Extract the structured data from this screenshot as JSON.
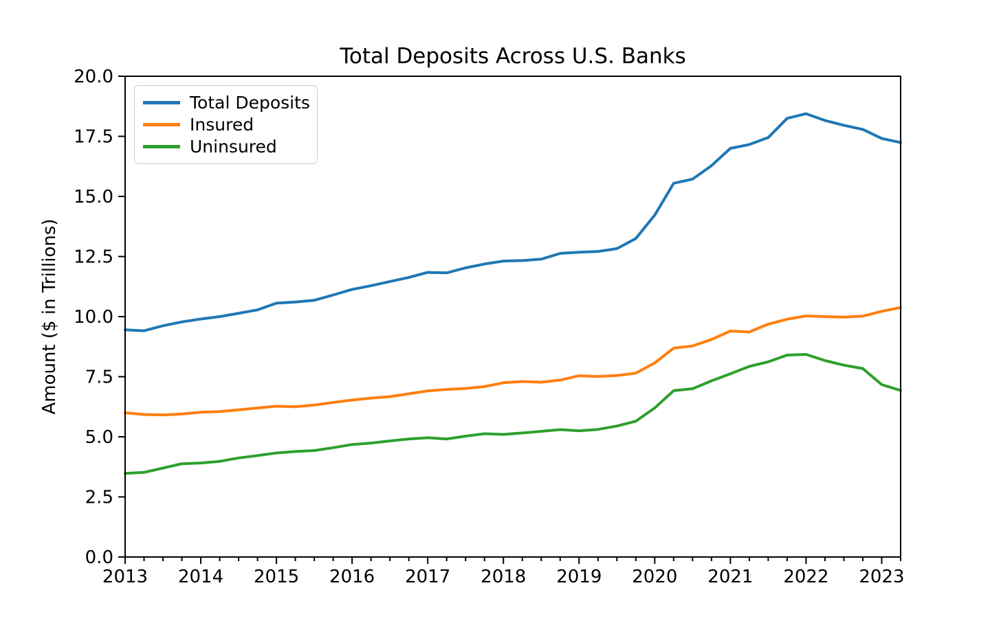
{
  "figure": {
    "background_color": "#ffffff",
    "axis_color": "#000000",
    "legend_border_color": "#cccccc"
  },
  "chart_data": {
    "type": "line",
    "title": "Total Deposits Across U.S. Banks",
    "xlabel": "",
    "ylabel": "Amount ($ in Trillions)",
    "xlim": [
      2013.0,
      2023.25
    ],
    "ylim": [
      0.0,
      20.0
    ],
    "grid": false,
    "legend_position": "upper-left",
    "x_minor_tick_interval": 0.25,
    "x_ticks": [
      {
        "value": 2013,
        "label": "2013"
      },
      {
        "value": 2014,
        "label": "2014"
      },
      {
        "value": 2015,
        "label": "2015"
      },
      {
        "value": 2016,
        "label": "2016"
      },
      {
        "value": 2017,
        "label": "2017"
      },
      {
        "value": 2018,
        "label": "2018"
      },
      {
        "value": 2019,
        "label": "2019"
      },
      {
        "value": 2020,
        "label": "2020"
      },
      {
        "value": 2021,
        "label": "2021"
      },
      {
        "value": 2022,
        "label": "2022"
      },
      {
        "value": 2023,
        "label": "2023"
      }
    ],
    "y_ticks": [
      {
        "value": 0.0,
        "label": "0.0"
      },
      {
        "value": 2.5,
        "label": "2.5"
      },
      {
        "value": 5.0,
        "label": "5.0"
      },
      {
        "value": 7.5,
        "label": "7.5"
      },
      {
        "value": 10.0,
        "label": "10.0"
      },
      {
        "value": 12.5,
        "label": "12.5"
      },
      {
        "value": 15.0,
        "label": "15.0"
      },
      {
        "value": 17.5,
        "label": "17.5"
      },
      {
        "value": 20.0,
        "label": "20.0"
      }
    ],
    "x": [
      2013.0,
      2013.25,
      2013.5,
      2013.75,
      2014.0,
      2014.25,
      2014.5,
      2014.75,
      2015.0,
      2015.25,
      2015.5,
      2015.75,
      2016.0,
      2016.25,
      2016.5,
      2016.75,
      2017.0,
      2017.25,
      2017.5,
      2017.75,
      2018.0,
      2018.25,
      2018.5,
      2018.75,
      2019.0,
      2019.25,
      2019.5,
      2019.75,
      2020.0,
      2020.25,
      2020.5,
      2020.75,
      2021.0,
      2021.25,
      2021.5,
      2021.75,
      2022.0,
      2022.25,
      2022.5,
      2022.75,
      2023.0,
      2023.25
    ],
    "series": [
      {
        "name": "Total Deposits",
        "color": "#1f77b4",
        "values": [
          9.45,
          9.41,
          9.62,
          9.78,
          9.9,
          10.0,
          10.14,
          10.28,
          10.56,
          10.61,
          10.68,
          10.9,
          11.13,
          11.29,
          11.46,
          11.63,
          11.84,
          11.82,
          12.03,
          12.19,
          12.31,
          12.33,
          12.39,
          12.63,
          12.68,
          12.71,
          12.83,
          13.25,
          14.22,
          15.55,
          15.72,
          16.28,
          17.0,
          17.16,
          17.45,
          18.25,
          18.44,
          18.16,
          17.96,
          17.79,
          17.41,
          17.24
        ]
      },
      {
        "name": "Insured",
        "color": "#ff7f0e",
        "values": [
          6.0,
          5.93,
          5.91,
          5.95,
          6.02,
          6.05,
          6.12,
          6.2,
          6.27,
          6.25,
          6.32,
          6.43,
          6.53,
          6.61,
          6.67,
          6.79,
          6.91,
          6.97,
          7.01,
          7.09,
          7.25,
          7.3,
          7.27,
          7.36,
          7.54,
          7.51,
          7.55,
          7.65,
          8.07,
          8.69,
          8.78,
          9.05,
          9.4,
          9.36,
          9.69,
          9.89,
          10.03,
          10.0,
          9.98,
          10.02,
          10.22,
          10.38
        ]
      },
      {
        "name": "Uninsured",
        "color": "#2ca02c",
        "values": [
          3.48,
          3.52,
          3.7,
          3.88,
          3.91,
          3.98,
          4.12,
          4.22,
          4.33,
          4.39,
          4.43,
          4.55,
          4.68,
          4.74,
          4.83,
          4.91,
          4.96,
          4.91,
          5.03,
          5.13,
          5.1,
          5.16,
          5.23,
          5.3,
          5.25,
          5.31,
          5.45,
          5.65,
          6.2,
          6.92,
          7.0,
          7.33,
          7.62,
          7.93,
          8.12,
          8.4,
          8.43,
          8.17,
          7.98,
          7.84,
          7.17,
          6.93
        ]
      }
    ]
  }
}
